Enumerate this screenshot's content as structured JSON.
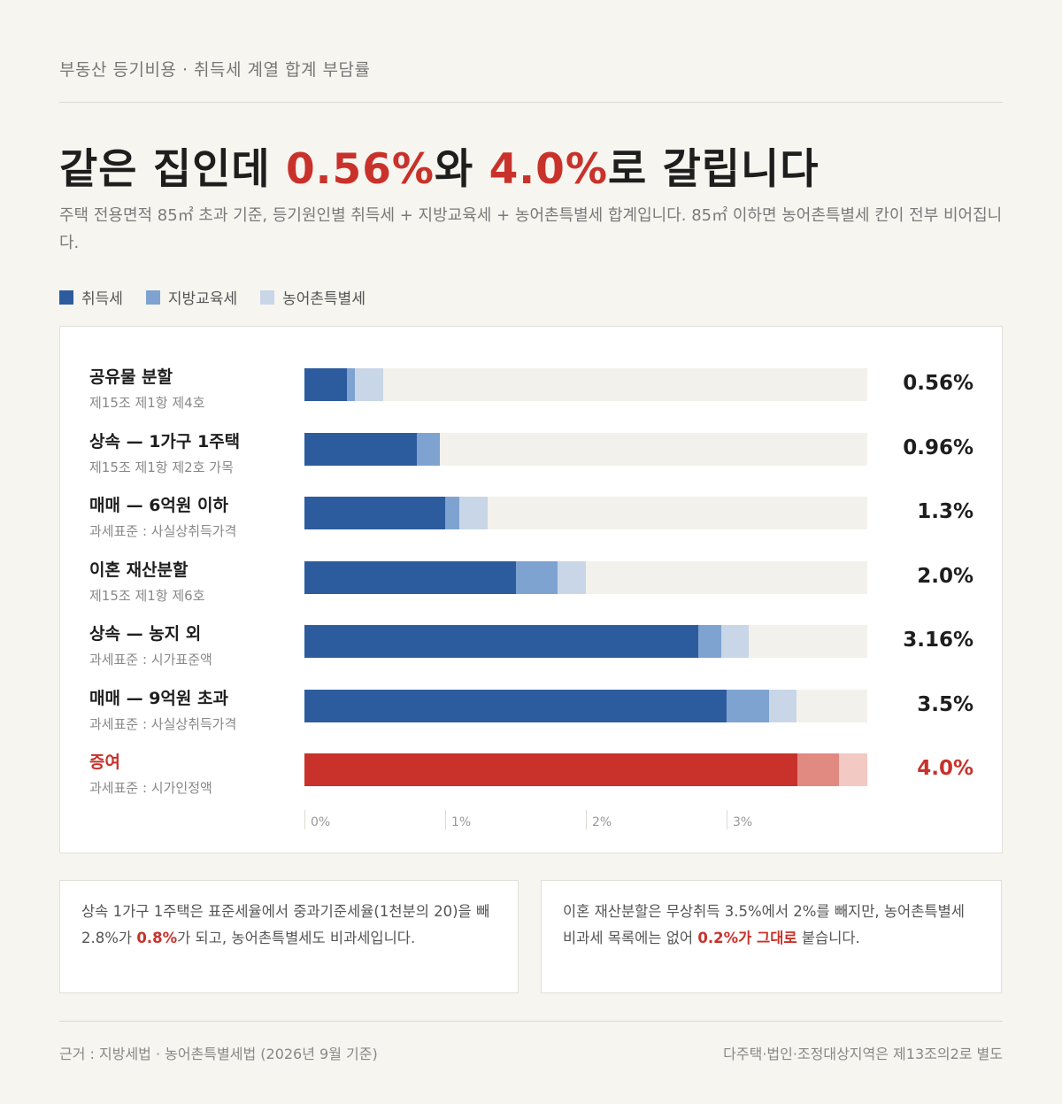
{
  "header": {
    "kicker": "부동산 등기비용 · 취득세 계열 합계 부담률",
    "headline_pre": "같은 집인데 ",
    "headline_a": "0.56%",
    "headline_mid": "와 ",
    "headline_b": "4.0%",
    "headline_post": "로 갈립니다",
    "subtitle": "주택 전용면적 85㎡ 초과 기준, 등기원인별 취득세 + 지방교육세 + 농어촌특별세 합계입니다. 85㎡ 이하면 농어촌특별세 칸이 전부 비어집니다."
  },
  "legend": [
    {
      "label": "취득세",
      "color": "#2d5c9e"
    },
    {
      "label": "지방교육세",
      "color": "#7ea3d1"
    },
    {
      "label": "농어촌특별세",
      "color": "#c9d6e8"
    }
  ],
  "colors": {
    "acq": "#2d5c9e",
    "edu": "#7ea3d1",
    "rural": "#c9d6e8",
    "acq_hl": "#c8322b",
    "edu_hl": "#e08a82",
    "rural_hl": "#f3c9c4",
    "track": "#f2f1ec",
    "accent": "#c8322b"
  },
  "chart_data": {
    "type": "bar",
    "orientation": "horizontal",
    "stacked": true,
    "xlim": [
      0,
      4.0
    ],
    "ticks": [
      {
        "value": 0,
        "label": "0%"
      },
      {
        "value": 1,
        "label": "1%"
      },
      {
        "value": 2,
        "label": "2%"
      },
      {
        "value": 3,
        "label": "3%"
      }
    ],
    "series_names": [
      "취득세",
      "지방교육세",
      "농어촌특별세"
    ],
    "rows": [
      {
        "title": "공유물 분할",
        "sub": "제15조 제1항 제4호",
        "values": [
          0.3,
          0.06,
          0.2
        ],
        "total": "0.56%",
        "highlight": false
      },
      {
        "title": "상속 — 1가구 1주택",
        "sub": "제15조 제1항 제2호 가목",
        "values": [
          0.8,
          0.16,
          0
        ],
        "total": "0.96%",
        "highlight": false
      },
      {
        "title": "매매 — 6억원 이하",
        "sub": "과세표준 : 사실상취득가격",
        "values": [
          1.0,
          0.1,
          0.2
        ],
        "total": "1.3%",
        "highlight": false
      },
      {
        "title": "이혼 재산분할",
        "sub": "제15조 제1항 제6호",
        "values": [
          1.5,
          0.3,
          0.2
        ],
        "total": "2.0%",
        "highlight": false
      },
      {
        "title": "상속 — 농지 외",
        "sub": "과세표준 : 시가표준액",
        "values": [
          2.8,
          0.16,
          0.2
        ],
        "total": "3.16%",
        "highlight": false
      },
      {
        "title": "매매 — 9억원 초과",
        "sub": "과세표준 : 사실상취득가격",
        "values": [
          3.0,
          0.3,
          0.2
        ],
        "total": "3.5%",
        "highlight": false
      },
      {
        "title": "증여",
        "sub": "과세표준 : 시가인정액",
        "values": [
          3.5,
          0.3,
          0.2
        ],
        "total": "4.0%",
        "highlight": true
      }
    ]
  },
  "notes": {
    "left_pre": "상속 1가구 1주택은 표준세율에서 중과기준세율(1천분의 20)을 빼 2.8%가 ",
    "left_hl": "0.8%",
    "left_post": "가 되고, 농어촌특별세도 비과세입니다.",
    "right_pre": "이혼 재산분할은 무상취득 3.5%에서 2%를 빼지만, 농어촌특별세 비과세 목록에는 없어 ",
    "right_hl": "0.2%가 그대로",
    "right_post": " 붙습니다."
  },
  "footer": {
    "left": "근거 : 지방세법 · 농어촌특별세법 (2026년 9월 기준)",
    "right": "다주택·법인·조정대상지역은 제13조의2로 별도"
  }
}
